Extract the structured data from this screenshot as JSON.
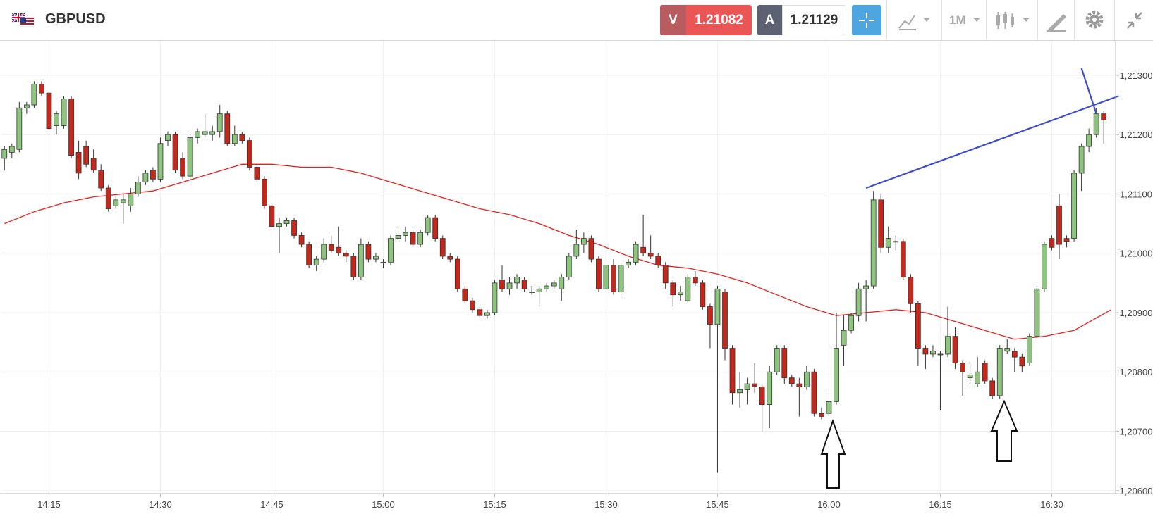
{
  "header": {
    "symbol": "GBPUSD",
    "sell_label": "V",
    "sell_price": "1.21082",
    "buy_label": "A",
    "buy_price": "1.21129",
    "timeframe": "1M"
  },
  "chart_data": {
    "type": "candlestick",
    "x": [
      "14:09",
      "14:10",
      "14:11",
      "14:12",
      "14:13",
      "14:14",
      "14:15",
      "14:16",
      "14:17",
      "14:18",
      "14:19",
      "14:20",
      "14:21",
      "14:22",
      "14:23",
      "14:24",
      "14:25",
      "14:26",
      "14:27",
      "14:28",
      "14:29",
      "14:30",
      "14:31",
      "14:32",
      "14:33",
      "14:34",
      "14:35",
      "14:36",
      "14:37",
      "14:38",
      "14:39",
      "14:40",
      "14:41",
      "14:42",
      "14:43",
      "14:44",
      "14:45",
      "14:46",
      "14:47",
      "14:48",
      "14:49",
      "14:50",
      "14:51",
      "14:52",
      "14:53",
      "14:54",
      "14:55",
      "14:56",
      "14:57",
      "14:58",
      "14:59",
      "15:00",
      "15:01",
      "15:02",
      "15:03",
      "15:04",
      "15:05",
      "15:06",
      "15:07",
      "15:08",
      "15:09",
      "15:10",
      "15:11",
      "15:12",
      "15:13",
      "15:14",
      "15:15",
      "15:16",
      "15:17",
      "15:18",
      "15:19",
      "15:20",
      "15:21",
      "15:22",
      "15:23",
      "15:24",
      "15:25",
      "15:26",
      "15:27",
      "15:28",
      "15:29",
      "15:30",
      "15:31",
      "15:32",
      "15:33",
      "15:34",
      "15:35",
      "15:36",
      "15:37",
      "15:38",
      "15:39",
      "15:40",
      "15:41",
      "15:42",
      "15:43",
      "15:44",
      "15:45",
      "15:46",
      "15:47",
      "15:48",
      "15:49",
      "15:50",
      "15:51",
      "15:52",
      "15:53",
      "15:54",
      "15:55",
      "15:56",
      "15:57",
      "15:58",
      "15:59",
      "16:00",
      "16:01",
      "16:02",
      "16:03",
      "16:04",
      "16:05",
      "16:06",
      "16:07",
      "16:08",
      "16:09",
      "16:10",
      "16:11",
      "16:12",
      "16:13",
      "16:14",
      "16:15",
      "16:16",
      "16:17",
      "16:18",
      "16:19",
      "16:20",
      "16:21",
      "16:22",
      "16:23",
      "16:24",
      "16:25",
      "16:26",
      "16:27",
      "16:28",
      "16:29",
      "16:30",
      "16:31",
      "16:32",
      "16:33",
      "16:34",
      "16:35",
      "16:36",
      "16:37"
    ],
    "candles": [
      [
        1.2116,
        1.2118,
        1.2114,
        1.21175
      ],
      [
        1.2117,
        1.21185,
        1.2116,
        1.2118
      ],
      [
        1.21175,
        1.21255,
        1.2117,
        1.21245
      ],
      [
        1.21245,
        1.21255,
        1.21235,
        1.2125
      ],
      [
        1.2125,
        1.2129,
        1.21245,
        1.21285
      ],
      [
        1.21285,
        1.2129,
        1.21265,
        1.2127
      ],
      [
        1.2127,
        1.21275,
        1.21205,
        1.2121
      ],
      [
        1.21215,
        1.2124,
        1.212,
        1.21235
      ],
      [
        1.21215,
        1.21265,
        1.2121,
        1.2126
      ],
      [
        1.2126,
        1.21265,
        1.2116,
        1.21165
      ],
      [
        1.2117,
        1.2119,
        1.21125,
        1.21135
      ],
      [
        1.2118,
        1.2119,
        1.21145,
        1.2115
      ],
      [
        1.2116,
        1.21175,
        1.21135,
        1.2114
      ],
      [
        1.2114,
        1.2115,
        1.21105,
        1.2111
      ],
      [
        1.2111,
        1.21115,
        1.2107,
        1.21075
      ],
      [
        1.2108,
        1.21095,
        1.21075,
        1.2109
      ],
      [
        1.21085,
        1.211,
        1.2105,
        1.2109
      ],
      [
        1.2108,
        1.2111,
        1.2107,
        1.211
      ],
      [
        1.211,
        1.2113,
        1.21095,
        1.2112
      ],
      [
        1.2112,
        1.2114,
        1.21115,
        1.21135
      ],
      [
        1.2114,
        1.21145,
        1.2112,
        1.21125
      ],
      [
        1.21125,
        1.21195,
        1.2112,
        1.21185
      ],
      [
        1.2119,
        1.21205,
        1.2118,
        1.212
      ],
      [
        1.212,
        1.21205,
        1.21135,
        1.2114
      ],
      [
        1.2116,
        1.2117,
        1.21125,
        1.2113
      ],
      [
        1.2113,
        1.212,
        1.21125,
        1.21195
      ],
      [
        1.21195,
        1.2121,
        1.21185,
        1.21205
      ],
      [
        1.212,
        1.21235,
        1.21195,
        1.21205
      ],
      [
        1.212,
        1.21215,
        1.2119,
        1.21205
      ],
      [
        1.21205,
        1.2125,
        1.21195,
        1.21235
      ],
      [
        1.21235,
        1.2124,
        1.2118,
        1.21185
      ],
      [
        1.21185,
        1.21215,
        1.2118,
        1.212
      ],
      [
        1.212,
        1.21205,
        1.21185,
        1.2119
      ],
      [
        1.2119,
        1.21195,
        1.2114,
        1.21145
      ],
      [
        1.21145,
        1.2115,
        1.2112,
        1.21125
      ],
      [
        1.21125,
        1.2113,
        1.21075,
        1.2108
      ],
      [
        1.2108,
        1.21085,
        1.2104,
        1.21045
      ],
      [
        1.21045,
        1.2106,
        1.21,
        1.2105
      ],
      [
        1.2105,
        1.2106,
        1.21045,
        1.21055
      ],
      [
        1.21055,
        1.2106,
        1.21025,
        1.2103
      ],
      [
        1.2103,
        1.21035,
        1.2101,
        1.21015
      ],
      [
        1.21015,
        1.2102,
        1.20975,
        1.2098
      ],
      [
        1.2098,
        1.20995,
        1.2097,
        1.2099
      ],
      [
        1.2099,
        1.21025,
        1.20985,
        1.21015
      ],
      [
        1.21015,
        1.2103,
        1.21,
        1.21005
      ],
      [
        1.2101,
        1.21045,
        1.20995,
        1.21
      ],
      [
        1.21,
        1.21005,
        1.20985,
        1.20995
      ],
      [
        1.20995,
        1.21,
        1.20955,
        1.2096
      ],
      [
        1.2096,
        1.21025,
        1.20955,
        1.21015
      ],
      [
        1.21015,
        1.2102,
        1.20985,
        1.2099
      ],
      [
        1.2099,
        1.21,
        1.20985,
        1.20995
      ],
      [
        1.20985,
        1.2099,
        1.20975,
        1.20985
      ],
      [
        1.20985,
        1.2103,
        1.2098,
        1.21025
      ],
      [
        1.21025,
        1.2104,
        1.2102,
        1.2103
      ],
      [
        1.2103,
        1.21045,
        1.2102,
        1.21035
      ],
      [
        1.21035,
        1.2104,
        1.2101,
        1.21015
      ],
      [
        1.21015,
        1.2104,
        1.2101,
        1.21035
      ],
      [
        1.21035,
        1.21065,
        1.2103,
        1.2106
      ],
      [
        1.2106,
        1.21065,
        1.2102,
        1.21025
      ],
      [
        1.21025,
        1.2103,
        1.2099,
        1.20995
      ],
      [
        1.20995,
        1.21,
        1.20985,
        1.2099
      ],
      [
        1.2099,
        1.20995,
        1.20935,
        1.2094
      ],
      [
        1.2094,
        1.20945,
        1.20915,
        1.2092
      ],
      [
        1.2092,
        1.20925,
        1.209,
        1.20905
      ],
      [
        1.20905,
        1.2091,
        1.2089,
        1.20895
      ],
      [
        1.20895,
        1.20905,
        1.2089,
        1.209
      ],
      [
        1.209,
        1.20955,
        1.20895,
        1.2095
      ],
      [
        1.20955,
        1.2098,
        1.20935,
        1.2094
      ],
      [
        1.2094,
        1.2096,
        1.2093,
        1.2095
      ],
      [
        1.2095,
        1.20965,
        1.2094,
        1.2096
      ],
      [
        1.20955,
        1.2096,
        1.20935,
        1.2094
      ],
      [
        1.20935,
        1.20945,
        1.2093,
        1.20935
      ],
      [
        1.20935,
        1.20945,
        1.2091,
        1.2094
      ],
      [
        1.2094,
        1.2095,
        1.20935,
        1.20945
      ],
      [
        1.20945,
        1.20955,
        1.2094,
        1.2095
      ],
      [
        1.2094,
        1.20965,
        1.2092,
        1.2096
      ],
      [
        1.2096,
        1.21,
        1.20955,
        1.20995
      ],
      [
        1.20995,
        1.2104,
        1.2099,
        1.21015
      ],
      [
        1.21015,
        1.21035,
        1.21,
        1.21025
      ],
      [
        1.21025,
        1.2103,
        1.20985,
        1.2099
      ],
      [
        1.2099,
        1.20995,
        1.20935,
        1.2094
      ],
      [
        1.2094,
        1.2099,
        1.20935,
        1.2098
      ],
      [
        1.2098,
        1.2099,
        1.2093,
        1.20935
      ],
      [
        1.20935,
        1.20985,
        1.20925,
        1.2098
      ],
      [
        1.2098,
        1.2099,
        1.20975,
        1.20985
      ],
      [
        1.20985,
        1.2102,
        1.2098,
        1.21015
      ],
      [
        1.2101,
        1.21065,
        1.20995,
        1.21
      ],
      [
        1.21,
        1.2103,
        1.2099,
        1.20995
      ],
      [
        1.20995,
        1.21,
        1.20975,
        1.2098
      ],
      [
        1.2098,
        1.20985,
        1.2094,
        1.2095
      ],
      [
        1.2095,
        1.20955,
        1.2091,
        1.2093
      ],
      [
        1.2093,
        1.20945,
        1.2092,
        1.20935
      ],
      [
        1.2092,
        1.20965,
        1.20915,
        1.2096
      ],
      [
        1.2096,
        1.2097,
        1.20945,
        1.2095
      ],
      [
        1.2095,
        1.20955,
        1.20905,
        1.2091
      ],
      [
        1.2091,
        1.20915,
        1.2084,
        1.2088
      ],
      [
        1.2088,
        1.20945,
        1.2063,
        1.2094
      ],
      [
        1.20935,
        1.2094,
        1.2082,
        1.2084
      ],
      [
        1.2084,
        1.20845,
        1.20745,
        1.20765
      ],
      [
        1.20765,
        1.208,
        1.2074,
        1.2077
      ],
      [
        1.2077,
        1.2079,
        1.20745,
        1.2078
      ],
      [
        1.2078,
        1.20815,
        1.20765,
        1.20775
      ],
      [
        1.20775,
        1.2078,
        1.207,
        1.20745
      ],
      [
        1.20745,
        1.2081,
        1.20705,
        1.208
      ],
      [
        1.208,
        1.20845,
        1.20795,
        1.2084
      ],
      [
        1.2084,
        1.20845,
        1.2078,
        1.2079
      ],
      [
        1.2079,
        1.20795,
        1.20775,
        1.2078
      ],
      [
        1.2078,
        1.2079,
        1.20725,
        1.20775
      ],
      [
        1.20775,
        1.2081,
        1.2077,
        1.208
      ],
      [
        1.208,
        1.20805,
        1.20725,
        1.2073
      ],
      [
        1.2073,
        1.2074,
        1.2072,
        1.20725
      ],
      [
        1.2073,
        1.20765,
        1.20715,
        1.2075
      ],
      [
        1.2075,
        1.209,
        1.20745,
        1.2084
      ],
      [
        1.20845,
        1.20895,
        1.2081,
        1.2087
      ],
      [
        1.2087,
        1.209,
        1.20865,
        1.20895
      ],
      [
        1.20895,
        1.2095,
        1.20885,
        1.2094
      ],
      [
        1.2094,
        1.20955,
        1.20885,
        1.20945
      ],
      [
        1.20945,
        1.21105,
        1.2094,
        1.2109
      ],
      [
        1.2109,
        1.211,
        1.21,
        1.2101
      ],
      [
        1.2101,
        1.21045,
        1.21,
        1.21025
      ],
      [
        1.2102,
        1.2103,
        1.21005,
        1.2102
      ],
      [
        1.2102,
        1.21025,
        1.20955,
        1.2096
      ],
      [
        1.2096,
        1.20965,
        1.209,
        1.20915
      ],
      [
        1.20915,
        1.2092,
        1.2081,
        1.2084
      ],
      [
        1.2084,
        1.20845,
        1.20805,
        1.2083
      ],
      [
        1.2083,
        1.20845,
        1.20825,
        1.20835
      ],
      [
        1.2083,
        1.20835,
        1.20735,
        1.2083
      ],
      [
        1.2083,
        1.2091,
        1.20825,
        1.2086
      ],
      [
        1.2086,
        1.20875,
        1.20805,
        1.20815
      ],
      [
        1.20815,
        1.2082,
        1.2076,
        1.208
      ],
      [
        1.2079,
        1.20815,
        1.2078,
        1.20795
      ],
      [
        1.2078,
        1.20825,
        1.20775,
        1.208
      ],
      [
        1.20815,
        1.2082,
        1.2078,
        1.20785
      ],
      [
        1.20785,
        1.2079,
        1.20755,
        1.2076
      ],
      [
        1.2076,
        1.20845,
        1.20755,
        1.2084
      ],
      [
        1.20835,
        1.20855,
        1.2083,
        1.2084
      ],
      [
        1.20835,
        1.2084,
        1.208,
        1.20825
      ],
      [
        1.20825,
        1.2083,
        1.208,
        1.2081
      ],
      [
        1.20815,
        1.20865,
        1.2081,
        1.2086
      ],
      [
        1.2086,
        1.20945,
        1.20855,
        1.2094
      ],
      [
        1.2094,
        1.2102,
        1.20935,
        1.21015
      ],
      [
        1.21025,
        1.2103,
        1.21005,
        1.2101
      ],
      [
        1.2108,
        1.211,
        1.2099,
        1.21015
      ],
      [
        1.21025,
        1.2103,
        1.2101,
        1.2102
      ],
      [
        1.21025,
        1.2114,
        1.2102,
        1.21135
      ],
      [
        1.21135,
        1.21185,
        1.21105,
        1.2118
      ],
      [
        1.2118,
        1.2121,
        1.2117,
        1.212
      ],
      [
        1.212,
        1.21245,
        1.21195,
        1.21235
      ],
      [
        1.21235,
        1.2124,
        1.21185,
        1.21225
      ]
    ],
    "up_color": "#8dc57f",
    "down_color": "#c2281c",
    "ma": {
      "color": "#e8201f",
      "x": [
        "14:09",
        "14:13",
        "14:17",
        "14:21",
        "14:25",
        "14:29",
        "14:33",
        "14:37",
        "14:41",
        "14:45",
        "14:49",
        "14:53",
        "14:57",
        "15:01",
        "15:05",
        "15:09",
        "15:13",
        "15:17",
        "15:21",
        "15:25",
        "15:29",
        "15:33",
        "15:37",
        "15:41",
        "15:45",
        "15:49",
        "15:53",
        "15:57",
        "16:01",
        "16:05",
        "16:09",
        "16:13",
        "16:17",
        "16:21",
        "16:25",
        "16:29",
        "16:33",
        "16:38"
      ],
      "values": [
        1.2105,
        1.2107,
        1.21085,
        1.21095,
        1.211,
        1.21105,
        1.2112,
        1.21135,
        1.2115,
        1.2115,
        1.21145,
        1.21145,
        1.21135,
        1.2112,
        1.21105,
        1.2109,
        1.21075,
        1.21065,
        1.2105,
        1.2103,
        1.21015,
        1.20995,
        1.2098,
        1.20975,
        1.20965,
        1.2095,
        1.2093,
        1.2091,
        1.20895,
        1.209,
        1.20905,
        1.209,
        1.20885,
        1.2087,
        1.20855,
        1.2086,
        1.2087,
        1.20905
      ]
    },
    "trendlines": [
      {
        "color": "#3d4ec6",
        "x": [
          "16:05",
          "16:39"
        ],
        "values": [
          1.2111,
          1.21265
        ]
      },
      {
        "color": "#3d4ec6",
        "x": [
          "16:34",
          "16:36"
        ],
        "values": [
          1.21312,
          1.21235
        ]
      }
    ],
    "xlim": [
      "14:09",
      "16:38"
    ],
    "xticks": [
      "14:15",
      "14:30",
      "14:45",
      "15:00",
      "15:15",
      "15:30",
      "15:45",
      "16:00",
      "16:15",
      "16:30"
    ],
    "ylim": [
      1.20595,
      1.21358
    ],
    "yticks": [
      {
        "value": 1.206,
        "label": "1,20600"
      },
      {
        "value": 1.207,
        "label": "1,20700"
      },
      {
        "value": 1.208,
        "label": "1,20800"
      },
      {
        "value": 1.209,
        "label": "1,20900"
      },
      {
        "value": 1.21,
        "label": "1,21000"
      },
      {
        "value": 1.211,
        "label": "1,21100"
      },
      {
        "value": 1.212,
        "label": "1,21200"
      },
      {
        "value": 1.213,
        "label": "1,21300"
      }
    ],
    "grid": true
  }
}
